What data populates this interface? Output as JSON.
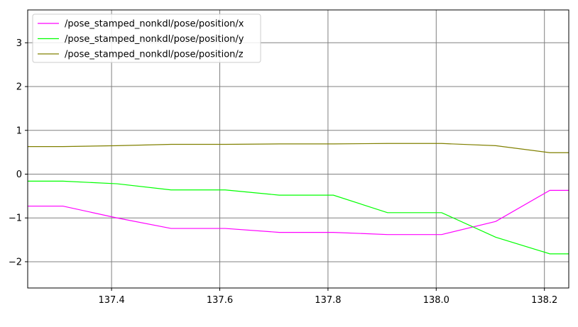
{
  "chart_data": {
    "type": "line",
    "title": "",
    "xlabel": "",
    "ylabel": "",
    "xlim": [
      137.245,
      138.245
    ],
    "ylim": [
      -2.6,
      3.75
    ],
    "grid": true,
    "legend_position": "top-left",
    "x_ticks": [
      137.4,
      137.6,
      137.8,
      138.0,
      138.2
    ],
    "x_tick_labels": [
      "137.4",
      "137.6",
      "137.8",
      "138.0",
      "138.2"
    ],
    "y_ticks": [
      -2,
      -1,
      0,
      1,
      2,
      3
    ],
    "y_tick_labels": [
      "−2",
      "−1",
      "0",
      "1",
      "2",
      "3"
    ],
    "series": [
      {
        "name": "/pose_stamped_nonkdl/pose/position/x",
        "color": "#ff00ff",
        "x": [
          137.245,
          137.31,
          137.41,
          137.51,
          137.61,
          137.71,
          137.81,
          137.91,
          138.01,
          138.11,
          138.21,
          138.245
        ],
        "y": [
          -0.73,
          -0.73,
          -1.0,
          -1.24,
          -1.24,
          -1.33,
          -1.33,
          -1.38,
          -1.38,
          -1.08,
          -0.37,
          -0.37
        ]
      },
      {
        "name": "/pose_stamped_nonkdl/pose/position/y",
        "color": "#00ff00",
        "x": [
          137.245,
          137.31,
          137.41,
          137.51,
          137.61,
          137.71,
          137.81,
          137.91,
          138.01,
          138.11,
          138.21,
          138.245
        ],
        "y": [
          -0.16,
          -0.16,
          -0.22,
          -0.36,
          -0.36,
          -0.48,
          -0.48,
          -0.88,
          -0.88,
          -1.44,
          -1.82,
          -1.82
        ]
      },
      {
        "name": "/pose_stamped_nonkdl/pose/position/z",
        "color": "#808000",
        "x": [
          137.245,
          137.31,
          137.41,
          137.51,
          137.61,
          137.71,
          137.81,
          137.91,
          138.01,
          138.11,
          138.21,
          138.245
        ],
        "y": [
          0.63,
          0.63,
          0.65,
          0.68,
          0.68,
          0.69,
          0.69,
          0.7,
          0.7,
          0.65,
          0.49,
          0.49
        ]
      }
    ]
  }
}
